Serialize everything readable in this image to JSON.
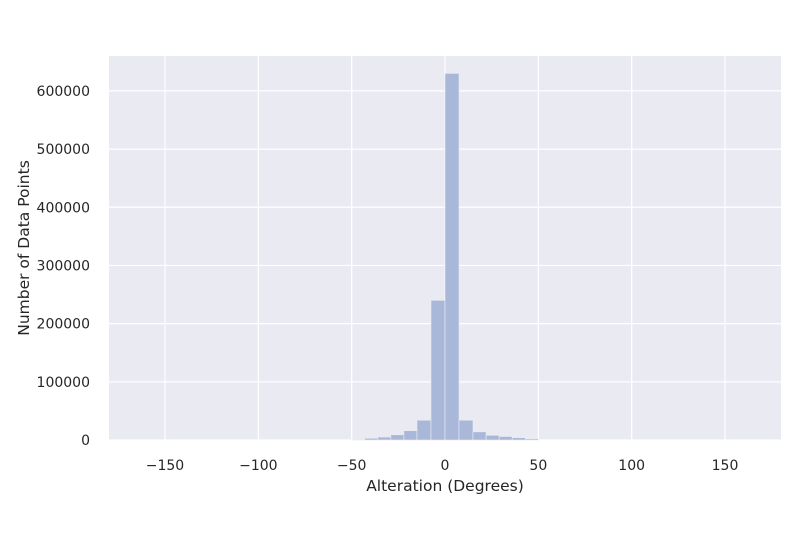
{
  "chart_data": {
    "type": "bar",
    "subtype": "histogram",
    "xlabel": "Alteration (Degrees)",
    "ylabel": "Number of Data Points",
    "xlim": [
      -180,
      180
    ],
    "ylim": [
      0,
      660000
    ],
    "grid": true,
    "colors": {
      "background": "#eaeaf2",
      "grid": "#ffffff",
      "bar": "#a9b8d8",
      "text": "#262626"
    },
    "x_ticks": [
      {
        "value": -150,
        "label": "−150"
      },
      {
        "value": -100,
        "label": "−100"
      },
      {
        "value": -50,
        "label": "−50"
      },
      {
        "value": 0,
        "label": "0"
      },
      {
        "value": 50,
        "label": "50"
      },
      {
        "value": 100,
        "label": "100"
      },
      {
        "value": 150,
        "label": "150"
      }
    ],
    "y_ticks": [
      {
        "value": 0,
        "label": "0"
      },
      {
        "value": 100000,
        "label": "100000"
      },
      {
        "value": 200000,
        "label": "200000"
      },
      {
        "value": 300000,
        "label": "300000"
      },
      {
        "value": 400000,
        "label": "400000"
      },
      {
        "value": 500000,
        "label": "500000"
      },
      {
        "value": 600000,
        "label": "600000"
      }
    ],
    "bins": [
      {
        "x0": -50,
        "x1": -43,
        "value": 1000
      },
      {
        "x0": -43,
        "x1": -36,
        "value": 3000
      },
      {
        "x0": -36,
        "x1": -29,
        "value": 5000
      },
      {
        "x0": -29,
        "x1": -22,
        "value": 9000
      },
      {
        "x0": -22,
        "x1": -15,
        "value": 16000
      },
      {
        "x0": -15,
        "x1": -7.5,
        "value": 34000
      },
      {
        "x0": -7.5,
        "x1": 0,
        "value": 240000
      },
      {
        "x0": 0,
        "x1": 7.5,
        "value": 630000
      },
      {
        "x0": 7.5,
        "x1": 15,
        "value": 34000
      },
      {
        "x0": 15,
        "x1": 22,
        "value": 14000
      },
      {
        "x0": 22,
        "x1": 29,
        "value": 8000
      },
      {
        "x0": 29,
        "x1": 36,
        "value": 6000
      },
      {
        "x0": 36,
        "x1": 43,
        "value": 4000
      },
      {
        "x0": 43,
        "x1": 50,
        "value": 2000
      }
    ]
  }
}
